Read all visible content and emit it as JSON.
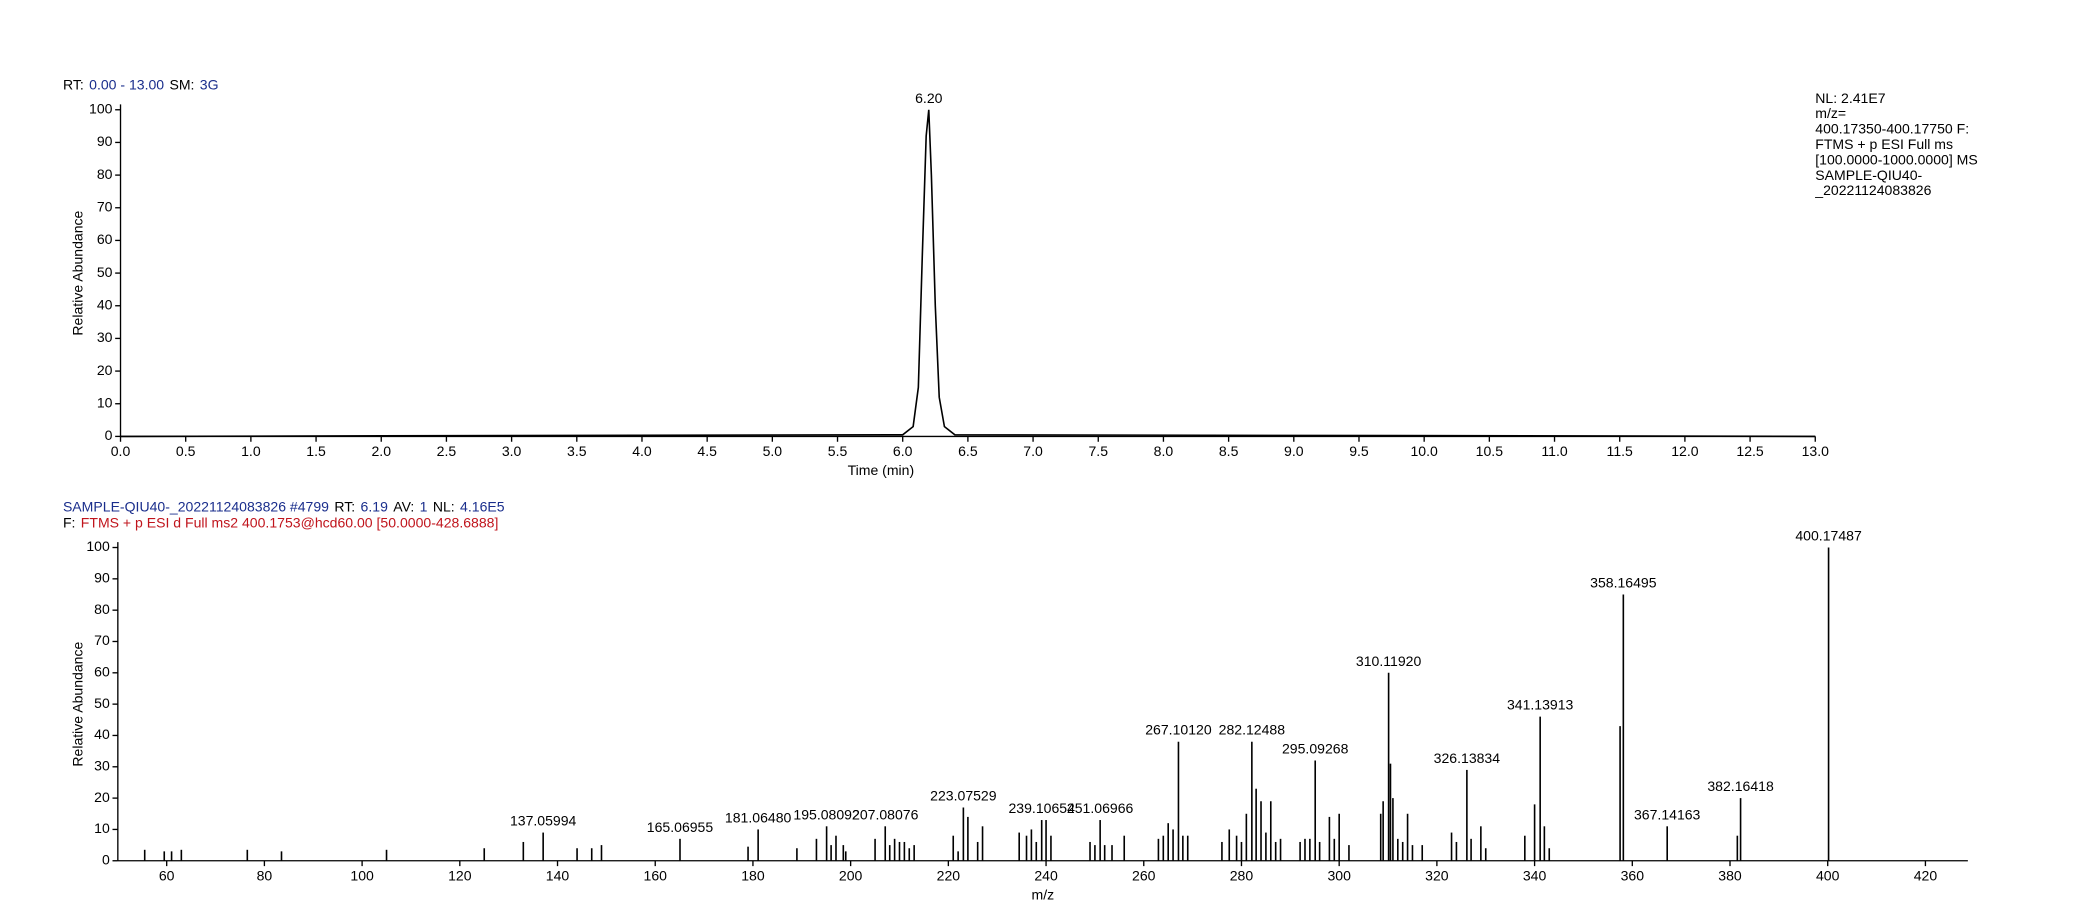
{
  "chart_data": [
    {
      "type": "line",
      "header_lines": [
        [
          {
            "text": "RT:",
            "color": "#000000"
          },
          {
            "text": "0.00 - 13.00",
            "color": "#1a2e8c"
          },
          {
            "text": "SM:",
            "color": "#000000"
          },
          {
            "text": "3G",
            "color": "#1a2e8c"
          }
        ]
      ],
      "info_lines": [
        "NL: 2.41E7",
        "m/z=",
        "400.17350-400.17750 F:",
        "FTMS + p ESI Full ms",
        "[100.0000-1000.0000]  MS",
        "SAMPLE-QIU40-",
        "_20221124083826"
      ],
      "x_label": "Time (min)",
      "y_label": "Relative Abundance",
      "xlim": [
        0,
        13
      ],
      "ylim": [
        0,
        100
      ],
      "xticks": [
        {
          "value": 0,
          "label": "0.0"
        },
        0.5,
        {
          "value": 1,
          "label": "1.0"
        },
        1.5,
        {
          "value": 2,
          "label": "2.0"
        },
        2.5,
        {
          "value": 3,
          "label": "3.0"
        },
        3.5,
        {
          "value": 4,
          "label": "4.0"
        },
        4.5,
        {
          "value": 5,
          "label": "5.0"
        },
        5.5,
        {
          "value": 6,
          "label": "6.0"
        },
        6.5,
        {
          "value": 7,
          "label": "7.0"
        },
        7.5,
        {
          "value": 8,
          "label": "8.0"
        },
        8.5,
        {
          "value": 9,
          "label": "9.0"
        },
        9.5,
        {
          "value": 10,
          "label": "10.0"
        },
        10.5,
        {
          "value": 11,
          "label": "11.0"
        },
        11.5,
        {
          "value": 12,
          "label": "12.0"
        },
        12.5,
        {
          "value": 13,
          "label": "13.0"
        }
      ],
      "yticks": [
        0,
        10,
        20,
        30,
        40,
        50,
        60,
        70,
        80,
        90,
        100
      ],
      "x": [
        0,
        6.0,
        6.08,
        6.12,
        6.15,
        6.18,
        6.2,
        6.22,
        6.25,
        6.28,
        6.32,
        6.4,
        13
      ],
      "values": [
        0,
        0.5,
        3,
        15,
        55,
        92,
        100,
        80,
        40,
        12,
        3,
        0.5,
        0
      ],
      "x_labels": [
        null,
        null,
        null,
        null,
        null,
        null,
        "6.20",
        null,
        null,
        null,
        null,
        null,
        null
      ],
      "color": "#000000"
    },
    {
      "type": "stem",
      "header_lines": [
        [
          {
            "text": "SAMPLE-QIU40-_20221124083826 #4799",
            "color": "#1a2e8c"
          },
          {
            "text": "RT:",
            "color": "#000000"
          },
          {
            "text": "6.19",
            "color": "#1a2e8c"
          },
          {
            "text": "AV:",
            "color": "#000000"
          },
          {
            "text": "1",
            "color": "#1a2e8c"
          },
          {
            "text": "NL:",
            "color": "#000000"
          },
          {
            "text": "4.16E5",
            "color": "#1a2e8c"
          }
        ],
        [
          {
            "text": "F:",
            "color": "#000000"
          },
          {
            "text": "FTMS + p ESI d Full ms2 400.1753@hcd60.00 [50.0000-428.6888]",
            "color": "#c0141c"
          }
        ]
      ],
      "x_label": "m/z",
      "y_label": "Relative Abundance",
      "xlim": [
        50,
        428.6888
      ],
      "ylim": [
        0,
        100
      ],
      "xticks": [
        60,
        80,
        100,
        120,
        140,
        160,
        180,
        200,
        220,
        240,
        260,
        280,
        300,
        320,
        340,
        360,
        380,
        400,
        420
      ],
      "yticks": [
        0,
        10,
        20,
        30,
        40,
        50,
        60,
        70,
        80,
        90,
        100
      ],
      "x": [
        55.5,
        59.5,
        61,
        63,
        76.5,
        83.5,
        105,
        125,
        133,
        137.05994,
        144,
        147,
        149,
        165.06955,
        179,
        181.0648,
        189,
        193,
        195.08092,
        196,
        197,
        198.5,
        199,
        205,
        207.08076,
        208,
        209,
        210,
        211,
        212,
        213,
        221,
        222,
        223.07529,
        224,
        226,
        227,
        234.5,
        236,
        237,
        238,
        239.10654,
        240,
        241,
        249,
        250,
        251.06966,
        252,
        253.5,
        256,
        263,
        264,
        265,
        266,
        267.1012,
        268,
        269,
        276,
        277.5,
        279,
        280,
        281,
        282.12488,
        283,
        284,
        285,
        286,
        287,
        288,
        292,
        293,
        294,
        295.09268,
        296,
        298,
        299,
        300,
        302,
        308.5,
        309,
        310.1192,
        310.5,
        311,
        312,
        313,
        314,
        315,
        317,
        323,
        324,
        326.13834,
        327,
        329,
        330,
        338,
        340,
        341.13913,
        342,
        343,
        357.5,
        358.16495,
        367.14163,
        381.5,
        382.16418,
        400.17487
      ],
      "values": [
        3.5,
        3,
        3,
        3.5,
        3.5,
        3,
        3.5,
        4,
        6,
        9,
        4,
        4,
        5,
        7,
        4.5,
        10,
        4,
        7,
        11,
        5,
        8,
        5,
        3,
        7,
        11,
        5,
        7,
        6,
        6,
        4,
        5,
        8,
        3,
        17,
        14,
        6,
        11,
        9,
        8,
        10,
        6,
        13,
        13,
        8,
        6,
        5,
        13,
        5,
        5,
        8,
        7,
        8,
        12,
        10,
        38,
        8,
        8,
        6,
        10,
        8,
        6,
        15,
        38,
        23,
        19,
        9,
        19,
        6,
        7,
        6,
        7,
        7,
        32,
        6,
        14,
        7,
        15,
        5,
        15,
        19,
        60,
        31,
        20,
        7,
        6,
        15,
        5,
        5,
        9,
        6,
        29,
        7,
        11,
        4,
        8,
        18,
        46,
        11,
        4,
        43,
        85,
        11,
        8,
        20,
        100
      ],
      "x_labels": [
        null,
        null,
        null,
        null,
        null,
        null,
        null,
        null,
        null,
        "137.05994",
        null,
        null,
        null,
        "165.06955",
        null,
        "181.06480",
        null,
        null,
        "195.08092",
        null,
        null,
        null,
        null,
        null,
        "207.08076",
        null,
        null,
        null,
        null,
        null,
        null,
        null,
        null,
        "223.07529",
        null,
        null,
        null,
        null,
        null,
        null,
        null,
        "239.10654",
        null,
        null,
        null,
        null,
        "251.06966",
        null,
        null,
        null,
        null,
        null,
        null,
        null,
        "267.10120",
        null,
        null,
        null,
        null,
        null,
        null,
        null,
        "282.12488",
        null,
        null,
        null,
        null,
        null,
        null,
        null,
        null,
        null,
        "295.09268",
        null,
        null,
        null,
        null,
        null,
        null,
        null,
        "310.11920",
        null,
        null,
        null,
        null,
        null,
        null,
        null,
        null,
        null,
        "326.13834",
        null,
        null,
        null,
        null,
        null,
        "341.13913",
        null,
        null,
        null,
        "358.16495",
        "367.14163",
        null,
        "382.16418",
        "400.17487"
      ],
      "color": "#000000"
    }
  ]
}
